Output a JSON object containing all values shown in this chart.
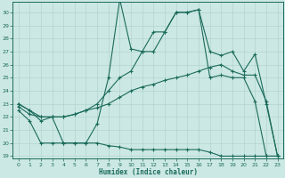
{
  "xlabel": "Humidex (Indice chaleur)",
  "bg_color": "#cce8e4",
  "line_color": "#1a6b5a",
  "grid_color": "#aacfca",
  "xlim": [
    -0.5,
    23.5
  ],
  "ylim": [
    18.8,
    30.8
  ],
  "yticks": [
    19,
    20,
    21,
    22,
    23,
    24,
    25,
    26,
    27,
    28,
    29,
    30
  ],
  "xticks": [
    0,
    1,
    2,
    3,
    4,
    5,
    6,
    7,
    8,
    9,
    10,
    11,
    12,
    13,
    14,
    15,
    16,
    17,
    18,
    19,
    20,
    21,
    22,
    23
  ],
  "line1_x": [
    0,
    1,
    2,
    3,
    4,
    5,
    6,
    7,
    8,
    9,
    10,
    11,
    12,
    13,
    14,
    15,
    16,
    17,
    18,
    19,
    20,
    21,
    22,
    23
  ],
  "line1_y": [
    23.0,
    22.5,
    21.7,
    22.0,
    20.0,
    20.0,
    20.0,
    21.5,
    25.0,
    31.0,
    27.2,
    27.0,
    28.5,
    28.5,
    30.0,
    30.0,
    30.2,
    25.0,
    25.2,
    25.0,
    25.0,
    23.2,
    19.0,
    19.0
  ],
  "line2_x": [
    0,
    1,
    2,
    3,
    4,
    5,
    6,
    7,
    8,
    9,
    10,
    11,
    12,
    13,
    14,
    15,
    16,
    17,
    18,
    19,
    20,
    21,
    22,
    23
  ],
  "line2_y": [
    23.0,
    22.5,
    22.0,
    22.0,
    22.0,
    22.2,
    22.5,
    23.0,
    24.0,
    25.0,
    25.5,
    27.0,
    27.0,
    28.5,
    30.0,
    30.0,
    30.2,
    27.0,
    26.7,
    27.0,
    25.5,
    26.8,
    23.0,
    19.0
  ],
  "line3_x": [
    0,
    1,
    2,
    3,
    4,
    5,
    6,
    7,
    8,
    9,
    10,
    11,
    12,
    13,
    14,
    15,
    16,
    17,
    18,
    19,
    20,
    21,
    22,
    23
  ],
  "line3_y": [
    22.8,
    22.2,
    22.0,
    22.0,
    22.0,
    22.2,
    22.5,
    22.7,
    23.0,
    23.5,
    24.0,
    24.3,
    24.5,
    24.8,
    25.0,
    25.2,
    25.5,
    25.8,
    26.0,
    25.5,
    25.2,
    25.2,
    23.2,
    19.0
  ],
  "line4_x": [
    0,
    1,
    2,
    3,
    4,
    5,
    6,
    7,
    8,
    9,
    10,
    11,
    12,
    13,
    14,
    15,
    16,
    17,
    18,
    19,
    20,
    21,
    22,
    23
  ],
  "line4_y": [
    22.5,
    21.7,
    20.0,
    20.0,
    20.0,
    20.0,
    20.0,
    20.0,
    19.8,
    19.7,
    19.5,
    19.5,
    19.5,
    19.5,
    19.5,
    19.5,
    19.5,
    19.3,
    19.0,
    19.0,
    19.0,
    19.0,
    19.0,
    19.0
  ]
}
